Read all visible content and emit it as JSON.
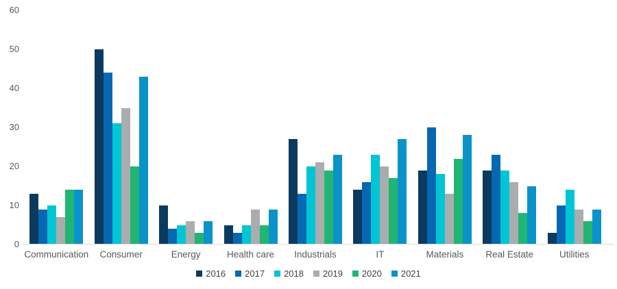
{
  "chart_data": {
    "type": "bar",
    "title": "",
    "categories": [
      "Communication",
      "Consumer",
      "Energy",
      "Health care",
      "Industrials",
      "IT",
      "Materials",
      "Real Estate",
      "Utilities"
    ],
    "series": [
      {
        "name": "2016",
        "color": "#0c3a5e",
        "values": [
          13,
          50,
          10,
          5,
          27,
          14,
          19,
          19,
          3
        ]
      },
      {
        "name": "2017",
        "color": "#0668b2",
        "values": [
          9,
          44,
          4,
          3,
          13,
          16,
          30,
          23,
          10
        ]
      },
      {
        "name": "2018",
        "color": "#00c5d4",
        "values": [
          10,
          31,
          5,
          5,
          20,
          23,
          18,
          19,
          14
        ]
      },
      {
        "name": "2019",
        "color": "#a9adad",
        "values": [
          7,
          35,
          6,
          9,
          21,
          20,
          13,
          16,
          9
        ]
      },
      {
        "name": "2020",
        "color": "#21b573",
        "values": [
          14,
          20,
          3,
          5,
          19,
          17,
          22,
          8,
          6
        ]
      },
      {
        "name": "2021",
        "color": "#0993ca",
        "values": [
          14,
          43,
          6,
          9,
          23,
          27,
          28,
          15,
          9
        ]
      }
    ],
    "ylim": [
      0,
      60
    ],
    "yticks": [
      0,
      10,
      20,
      30,
      40,
      50,
      60
    ],
    "xlabel": "",
    "ylabel": "",
    "grid": false,
    "legend_position": "bottom",
    "background_color": "#ffffff",
    "axis_line_color": "#d9d9d9",
    "tick_label_color": "#595959",
    "legend_text_color": "#404040"
  }
}
